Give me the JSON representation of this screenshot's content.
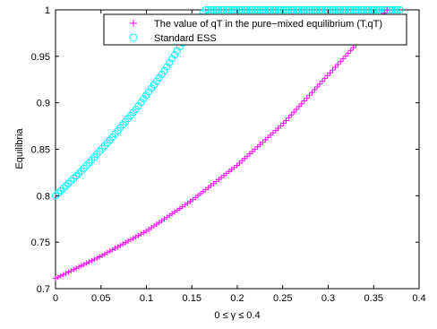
{
  "chart_data": {
    "type": "scatter",
    "title": "",
    "xlabel": "0 ≤ γ ≤ 0.4",
    "ylabel": "Equilibria",
    "xlim": [
      0,
      0.4
    ],
    "ylim": [
      0.7,
      1.0
    ],
    "x_ticks": [
      0,
      0.05,
      0.1,
      0.15,
      0.2,
      0.25,
      0.3,
      0.35,
      0.4
    ],
    "y_ticks": [
      0.7,
      0.75,
      0.8,
      0.85,
      0.9,
      0.95,
      1.0
    ],
    "x_tick_labels": [
      "0",
      "0.05",
      "0.1",
      "0.15",
      "0.2",
      "0.25",
      "0.3",
      "0.35",
      "0.4"
    ],
    "y_tick_labels": [
      "0.7",
      "0.75",
      "0.8",
      "0.85",
      "0.9",
      "0.95",
      "1"
    ],
    "grid": false,
    "legend_position": "top-right",
    "gamma_start": 0,
    "gamma_end": 0.38,
    "gamma_step": 0.00285,
    "series": [
      {
        "name": "The value of qT in the pure−mixed equilibrium (T,qT)",
        "marker": "plus",
        "color": "#ff00ff",
        "x": [
          0,
          0.05,
          0.1,
          0.15,
          0.2,
          0.25,
          0.3,
          0.35,
          0.365
        ],
        "y": [
          0.711,
          0.735,
          0.762,
          0.795,
          0.833,
          0.877,
          0.93,
          0.983,
          1.0
        ]
      },
      {
        "name": "Standard ESS",
        "marker": "circle",
        "color": "#00ffff",
        "x": [
          0,
          0.03,
          0.06,
          0.09,
          0.12,
          0.14,
          0.15,
          0.165,
          0.38
        ],
        "y": [
          0.8,
          0.828,
          0.86,
          0.895,
          0.935,
          0.965,
          0.98,
          1.0,
          1.0
        ]
      }
    ]
  }
}
